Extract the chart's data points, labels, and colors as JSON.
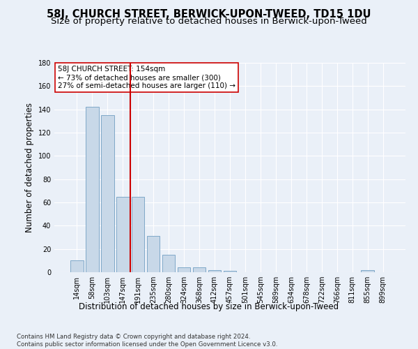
{
  "title": "58J, CHURCH STREET, BERWICK-UPON-TWEED, TD15 1DU",
  "subtitle": "Size of property relative to detached houses in Berwick-upon-Tweed",
  "xlabel": "Distribution of detached houses by size in Berwick-upon-Tweed",
  "ylabel": "Number of detached properties",
  "footnote": "Contains HM Land Registry data © Crown copyright and database right 2024.\nContains public sector information licensed under the Open Government Licence v3.0.",
  "bar_labels": [
    "14sqm",
    "58sqm",
    "103sqm",
    "147sqm",
    "191sqm",
    "235sqm",
    "280sqm",
    "324sqm",
    "368sqm",
    "412sqm",
    "457sqm",
    "501sqm",
    "545sqm",
    "589sqm",
    "634sqm",
    "678sqm",
    "722sqm",
    "766sqm",
    "811sqm",
    "855sqm",
    "899sqm"
  ],
  "bar_values": [
    10,
    142,
    135,
    65,
    65,
    31,
    15,
    4,
    4,
    2,
    1,
    0,
    0,
    0,
    0,
    0,
    0,
    0,
    0,
    2,
    0
  ],
  "bar_color": "#c8d8e8",
  "bar_edge_color": "#7fa8c8",
  "vline_x": 3.5,
  "vline_color": "#cc0000",
  "annotation_text": "58J CHURCH STREET: 154sqm\n← 73% of detached houses are smaller (300)\n27% of semi-detached houses are larger (110) →",
  "annotation_box_color": "#ffffff",
  "annotation_box_edge": "#cc0000",
  "ylim": [
    0,
    180
  ],
  "yticks": [
    0,
    20,
    40,
    60,
    80,
    100,
    120,
    140,
    160,
    180
  ],
  "background_color": "#eaf0f8",
  "plot_bg_color": "#eaf0f8",
  "grid_color": "#ffffff",
  "title_fontsize": 10.5,
  "subtitle_fontsize": 9.5,
  "label_fontsize": 8.5,
  "tick_fontsize": 7,
  "footnote_fontsize": 6.2
}
